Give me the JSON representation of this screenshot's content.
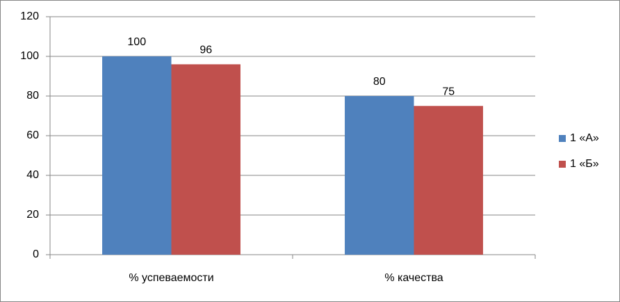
{
  "chart_data": {
    "type": "bar",
    "categories": [
      "% успеваемости",
      "% качества"
    ],
    "series": [
      {
        "name": "1 «А»",
        "color": "#4f81bd",
        "values": [
          100,
          80
        ]
      },
      {
        "name": "1 «Б»",
        "color": "#c0504d",
        "values": [
          96,
          75
        ]
      }
    ],
    "ylim": [
      0,
      120
    ],
    "yticks": [
      0,
      20,
      40,
      60,
      80,
      100,
      120
    ],
    "grid": true,
    "legend": "right"
  }
}
